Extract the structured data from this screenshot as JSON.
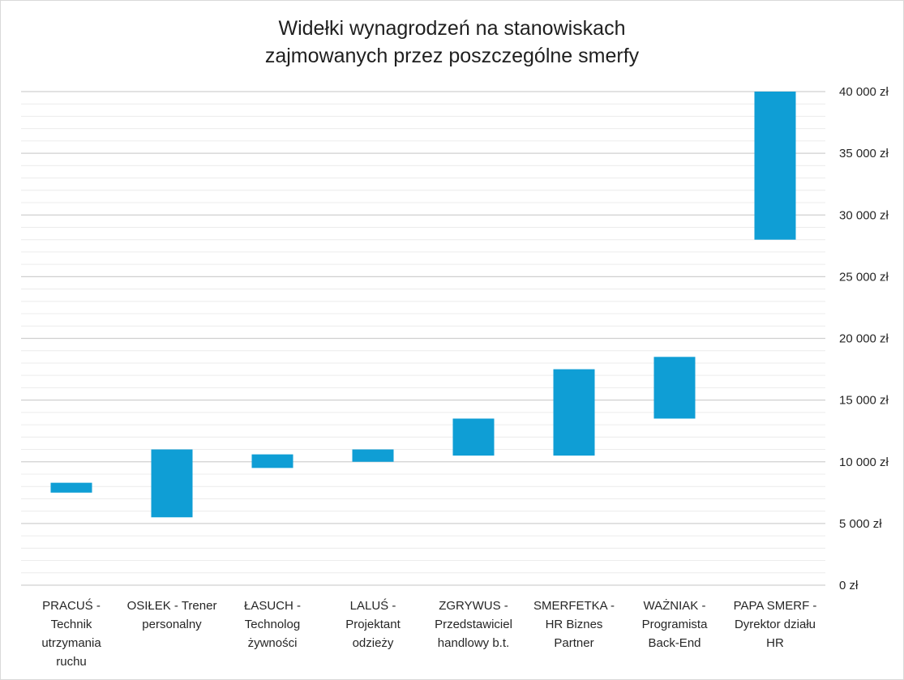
{
  "chart_data": {
    "type": "bar",
    "subtype": "floating-range",
    "title": "Widełki wynagrodzeń na stanowiskach zajmowanych przez poszczególne smerfy",
    "title_lines": [
      "Widełki wynagrodzeń na stanowiskach",
      "zajmowanych przez poszczególne smerfy"
    ],
    "xlabel": "",
    "ylabel": "",
    "ylim": [
      0,
      40000
    ],
    "y_axis_position": "right",
    "y_major_step": 5000,
    "y_minor_step": 1000,
    "grid": true,
    "legend": "none",
    "bar_color": "#0f9ed5",
    "y_ticks": [
      {
        "value": 0,
        "label": "0 zł"
      },
      {
        "value": 5000,
        "label": "5 000 zł"
      },
      {
        "value": 10000,
        "label": "10 000 zł"
      },
      {
        "value": 15000,
        "label": "15 000 zł"
      },
      {
        "value": 20000,
        "label": "20 000 zł"
      },
      {
        "value": 25000,
        "label": "25 000 zł"
      },
      {
        "value": 30000,
        "label": "30 000 zł"
      },
      {
        "value": 35000,
        "label": "35 000 zł"
      },
      {
        "value": 40000,
        "label": "40 000 zł"
      }
    ],
    "categories": [
      {
        "label_lines": [
          "PRACUŚ -",
          "Technik",
          "utrzymania",
          "ruchu"
        ],
        "min": 7500,
        "max": 8300
      },
      {
        "label_lines": [
          "OSIŁEK - Trener",
          "personalny"
        ],
        "min": 5500,
        "max": 11000
      },
      {
        "label_lines": [
          "ŁASUCH -",
          "Technolog",
          "żywności"
        ],
        "min": 9500,
        "max": 10600
      },
      {
        "label_lines": [
          "LALUŚ -",
          "Projektant",
          "odzieży"
        ],
        "min": 10000,
        "max": 11000
      },
      {
        "label_lines": [
          "ZGRYWUS -",
          "Przedstawiciel",
          "handlowy b.t."
        ],
        "min": 10500,
        "max": 13500
      },
      {
        "label_lines": [
          "SMERFETKA -",
          "HR Biznes",
          "Partner"
        ],
        "min": 10500,
        "max": 17500
      },
      {
        "label_lines": [
          "WAŻNIAK -",
          "Programista",
          "Back-End"
        ],
        "min": 13500,
        "max": 18500
      },
      {
        "label_lines": [
          "PAPA SMERF -",
          "Dyrektor działu",
          "HR"
        ],
        "min": 28000,
        "max": 40000
      }
    ]
  }
}
